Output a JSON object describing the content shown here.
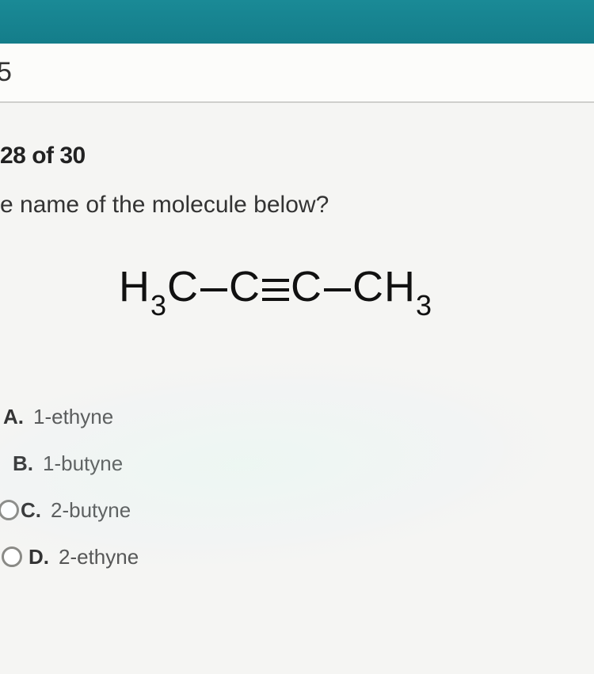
{
  "header": {
    "number": "5"
  },
  "question": {
    "progress": "28 of 30",
    "prompt": "e name of the molecule below?",
    "formula": {
      "left": "H",
      "left_sub": "3",
      "left2": "C",
      "mid1": "C",
      "mid2": "C",
      "right": "CH",
      "right_sub": "3"
    }
  },
  "options": {
    "a": {
      "letter": "A.",
      "text": "1-ethyne"
    },
    "b": {
      "letter": "B.",
      "text": "1-butyne"
    },
    "c": {
      "letter": "C.",
      "text": "2-butyne"
    },
    "d": {
      "letter": "D.",
      "text": "2-ethyne"
    }
  },
  "colors": {
    "topbar": "#1a8a96",
    "bg": "#f5f5f3",
    "text": "#333333"
  }
}
